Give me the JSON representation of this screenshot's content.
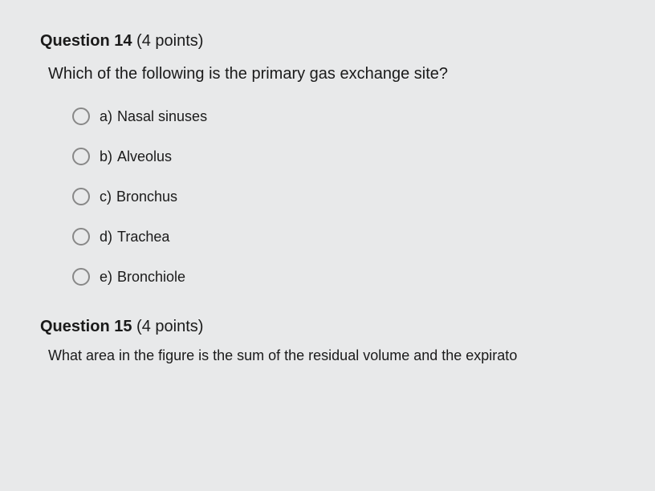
{
  "question14": {
    "label": "Question 14",
    "points": "(4 points)",
    "text": "Which of the following is the primary gas exchange site?",
    "options": [
      {
        "letter": "a)",
        "text": "Nasal sinuses"
      },
      {
        "letter": "b)",
        "text": "Alveolus"
      },
      {
        "letter": "c)",
        "text": "Bronchus"
      },
      {
        "letter": "d)",
        "text": "Trachea"
      },
      {
        "letter": "e)",
        "text": "Bronchiole"
      }
    ]
  },
  "question15": {
    "label": "Question 15",
    "points": "(4 points)",
    "cutoff_text": "What area in the figure is the sum of the residual volume and the expirato"
  }
}
